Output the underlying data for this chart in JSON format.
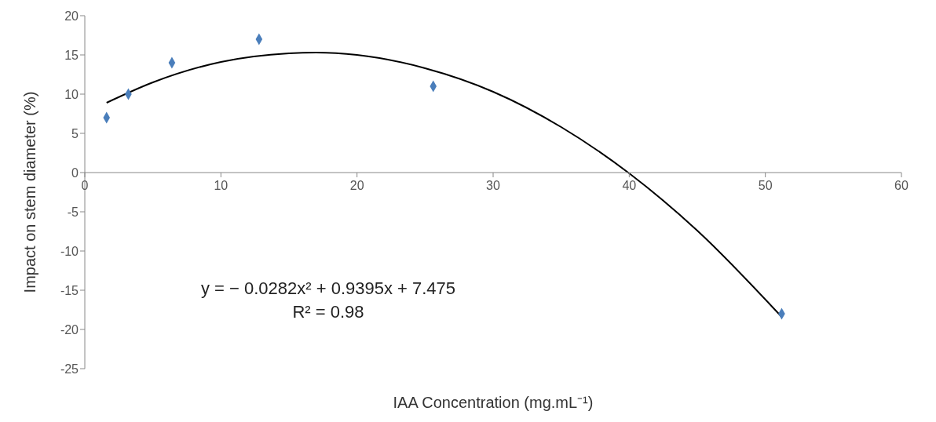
{
  "chart_data": {
    "type": "scatter",
    "xlabel": "IAA Concentration (mg.mL⁻¹)",
    "ylabel": "Impact on stem diameter (%)",
    "xlim": [
      0,
      60
    ],
    "xticks": [
      0,
      10,
      20,
      30,
      40,
      50,
      60
    ],
    "ylim": [
      -25,
      20
    ],
    "yticks": [
      -25,
      -20,
      -15,
      -10,
      -5,
      0,
      5,
      10,
      15,
      20
    ],
    "marker": "diamond",
    "annotations": [
      "y = − 0.0282x² + 0.9395x + 7.475",
      "R² = 0.98"
    ],
    "series": [
      {
        "color": "#4a7ebb",
        "x": [
          1.6,
          3.2,
          6.4,
          12.8,
          25.6,
          51.2
        ],
        "values": [
          7,
          10,
          14,
          17,
          11,
          -18
        ]
      },
      {
        "type": "line",
        "color": "#000000",
        "marker": "none",
        "line_style": "solid",
        "x": [
          1.6,
          5,
          10,
          15,
          17,
          20,
          25,
          30,
          35,
          40,
          45,
          51.2
        ],
        "values": [
          8.9,
          11.5,
          14.1,
          15.2,
          15.3,
          15.0,
          13.3,
          10.3,
          5.8,
          -0.1,
          -7.4,
          -18.4
        ]
      }
    ]
  }
}
